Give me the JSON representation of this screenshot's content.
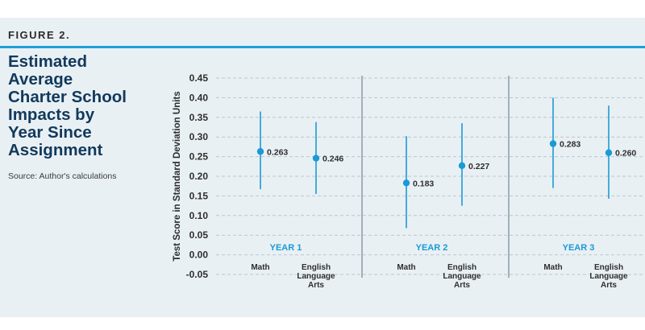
{
  "figure_label": "FIGURE 2.",
  "title": "Estimated\nAverage\nCharter School\nImpacts by\nYear Since\nAssignment",
  "source": "Source: Author's calculations",
  "colors": {
    "accent": "#1ea0d8",
    "title": "#12395c",
    "panel": "#e9f0f4",
    "point": "#1a9ad6"
  },
  "chart_data": {
    "type": "scatter",
    "subtype": "point-with-error-bars",
    "ylabel": "Test Score in Standard Deviation Units",
    "ylim": [
      -0.05,
      0.45
    ],
    "yticks": [
      "0.45",
      "0.40",
      "0.35",
      "0.30",
      "0.25",
      "0.20",
      "0.15",
      "0.10",
      "0.05",
      "0.00",
      "-0.05"
    ],
    "grid": true,
    "groups": [
      {
        "label": "YEAR 1",
        "items": [
          {
            "category": "Math",
            "value": 0.263,
            "label": "0.263",
            "ci": [
              0.167,
              0.365
            ]
          },
          {
            "category": "English\nLanguage\nArts",
            "value": 0.246,
            "label": "0.246",
            "ci": [
              0.155,
              0.338
            ]
          }
        ]
      },
      {
        "label": "YEAR 2",
        "items": [
          {
            "category": "Math",
            "value": 0.183,
            "label": "0.183",
            "ci": [
              0.068,
              0.302
            ]
          },
          {
            "category": "English\nLanguage\nArts",
            "value": 0.227,
            "label": "0.227",
            "ci": [
              0.125,
              0.335
            ]
          }
        ]
      },
      {
        "label": "YEAR 3",
        "items": [
          {
            "category": "Math",
            "value": 0.283,
            "label": "0.283",
            "ci": [
              0.17,
              0.4
            ]
          },
          {
            "category": "English\nLanguage\nArts",
            "value": 0.26,
            "label": "0.260",
            "ci": [
              0.143,
              0.38
            ]
          }
        ]
      }
    ]
  }
}
